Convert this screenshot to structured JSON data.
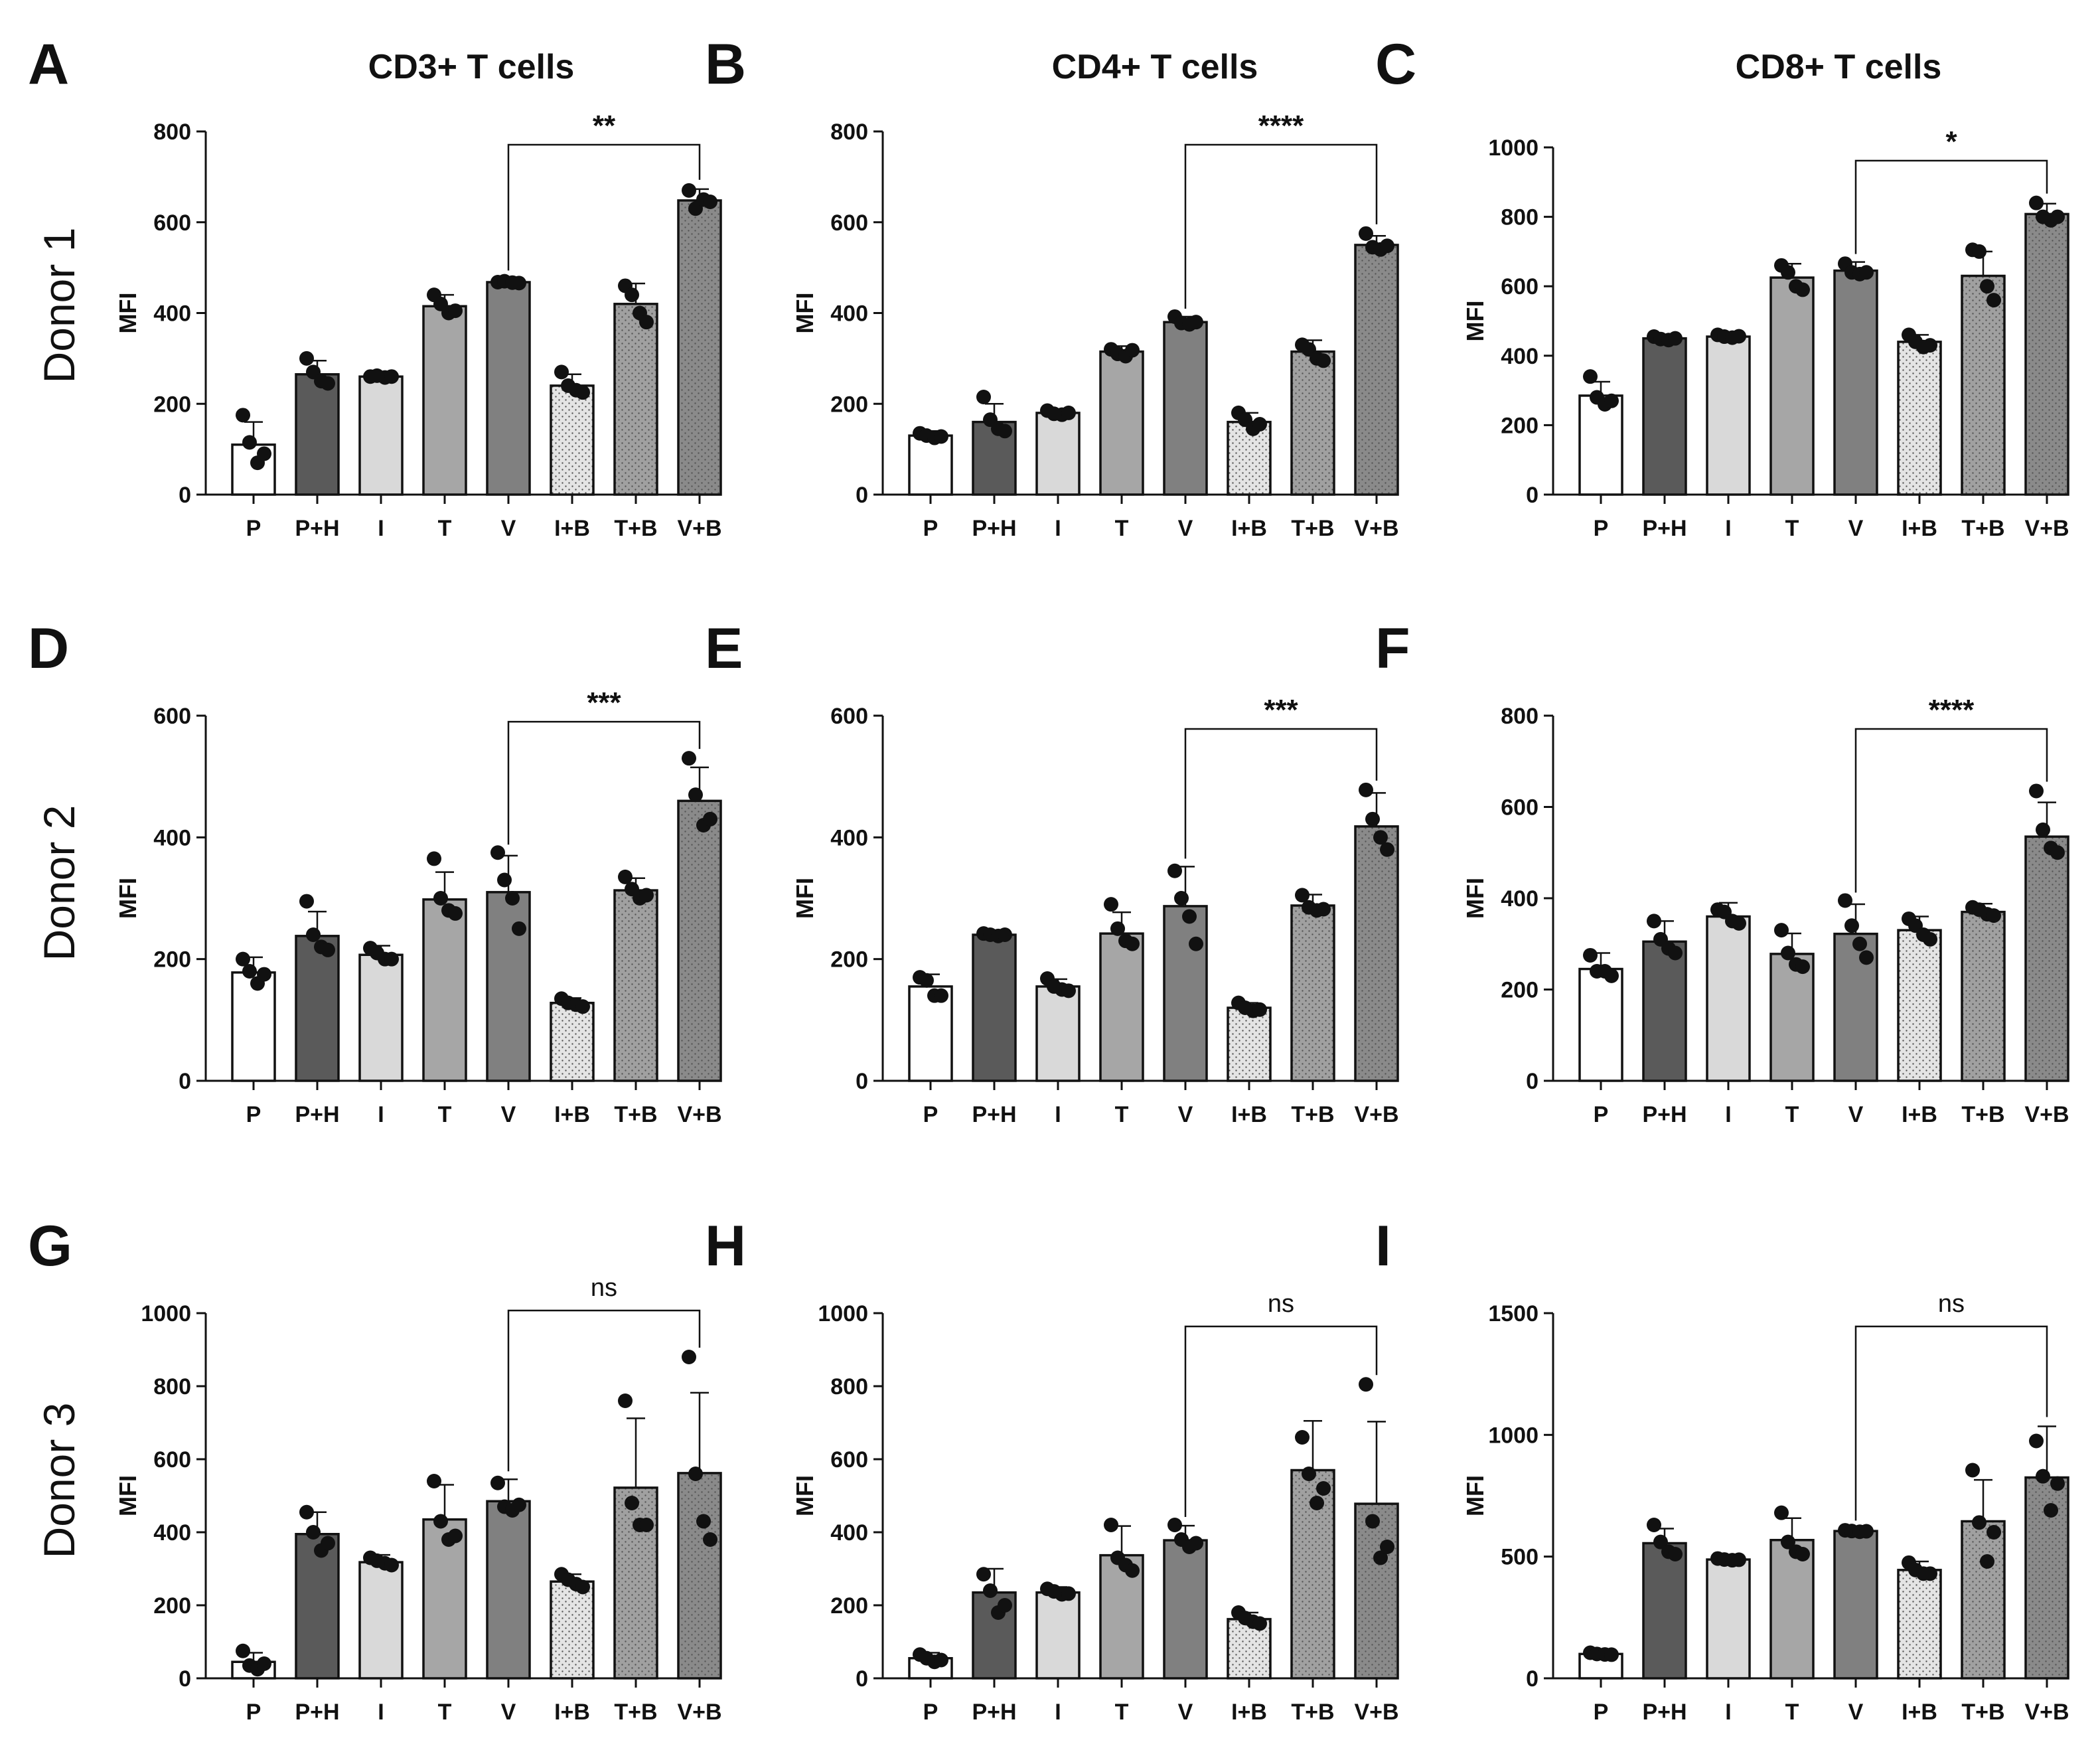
{
  "figure": {
    "column_titles": [
      "CD3+ T cells",
      "CD4+ T cells",
      "CD8+ T cells"
    ],
    "row_labels": [
      "Donor 1",
      "Donor 2",
      "Donor 3"
    ]
  },
  "colors": {
    "P": "#ffffff",
    "P+H": "#5a5a5a",
    "I": "#d9d9d9",
    "T": "#a6a6a6",
    "V": "#808080",
    "I+B": "#e4e4e4",
    "T+B": "#a0a0a0",
    "V+B": "#8a8a8a",
    "outline": "#111111",
    "dot": "#111111"
  },
  "chart_data": [
    {
      "panel": "A",
      "type": "bar",
      "title": "CD3+ T cells",
      "row_label": "Donor 1",
      "ylabel": "MFI",
      "ylim": [
        0,
        800
      ],
      "yticks": [
        0,
        200,
        400,
        600,
        800
      ],
      "categories": [
        "P",
        "P+H",
        "I",
        "T",
        "V",
        "I+B",
        "T+B",
        "V+B"
      ],
      "values": [
        110,
        265,
        260,
        415,
        468,
        240,
        420,
        648
      ],
      "errors": [
        50,
        30,
        8,
        25,
        8,
        25,
        45,
        25
      ],
      "points": [
        [
          175,
          115,
          70,
          90
        ],
        [
          300,
          270,
          250,
          245
        ],
        [
          260,
          262,
          258,
          260
        ],
        [
          440,
          420,
          400,
          405
        ],
        [
          468,
          470,
          467,
          466
        ],
        [
          270,
          240,
          230,
          225
        ],
        [
          460,
          440,
          400,
          380
        ],
        [
          670,
          630,
          650,
          645
        ]
      ],
      "comparison": {
        "from": "V",
        "to": "V+B",
        "label": "**"
      }
    },
    {
      "panel": "B",
      "type": "bar",
      "title": "CD4+ T cells",
      "row_label": "Donor 1",
      "ylabel": "MFI",
      "ylim": [
        0,
        800
      ],
      "yticks": [
        0,
        200,
        400,
        600,
        800
      ],
      "categories": [
        "P",
        "P+H",
        "I",
        "T",
        "V",
        "I+B",
        "T+B",
        "V+B"
      ],
      "values": [
        130,
        160,
        180,
        315,
        380,
        160,
        315,
        550
      ],
      "errors": [
        10,
        40,
        8,
        12,
        12,
        20,
        25,
        20
      ],
      "points": [
        [
          135,
          130,
          125,
          128
        ],
        [
          215,
          165,
          145,
          140
        ],
        [
          185,
          178,
          176,
          180
        ],
        [
          320,
          310,
          305,
          318
        ],
        [
          392,
          378,
          375,
          380
        ],
        [
          180,
          165,
          145,
          155
        ],
        [
          330,
          320,
          300,
          295
        ],
        [
          575,
          545,
          540,
          548
        ]
      ],
      "comparison": {
        "from": "V",
        "to": "V+B",
        "label": "****"
      }
    },
    {
      "panel": "C",
      "type": "bar",
      "title": "CD8+ T cells",
      "row_label": "Donor 1",
      "ylabel": "MFI",
      "ylim": [
        0,
        1000
      ],
      "yticks": [
        0,
        200,
        400,
        600,
        800,
        1000
      ],
      "categories": [
        "P",
        "P+H",
        "I",
        "T",
        "V",
        "I+B",
        "T+B",
        "V+B"
      ],
      "values": [
        285,
        450,
        455,
        625,
        645,
        440,
        630,
        808
      ],
      "errors": [
        40,
        10,
        8,
        40,
        25,
        20,
        70,
        30
      ],
      "points": [
        [
          340,
          280,
          260,
          270
        ],
        [
          455,
          448,
          445,
          450
        ],
        [
          460,
          455,
          452,
          456
        ],
        [
          660,
          640,
          600,
          590
        ],
        [
          665,
          640,
          635,
          640
        ],
        [
          460,
          440,
          425,
          430
        ],
        [
          705,
          700,
          600,
          560
        ],
        [
          840,
          800,
          790,
          800
        ]
      ],
      "comparison": {
        "from": "V",
        "to": "V+B",
        "label": "*"
      }
    },
    {
      "panel": "D",
      "type": "bar",
      "title": "",
      "row_label": "Donor 2",
      "ylabel": "MFI",
      "ylim": [
        0,
        600
      ],
      "yticks": [
        0,
        200,
        400,
        600
      ],
      "categories": [
        "P",
        "P+H",
        "I",
        "T",
        "V",
        "I+B",
        "T+B",
        "V+B"
      ],
      "values": [
        178,
        238,
        207,
        298,
        310,
        128,
        313,
        460
      ],
      "errors": [
        25,
        40,
        15,
        45,
        60,
        8,
        20,
        55
      ],
      "points": [
        [
          200,
          180,
          160,
          175
        ],
        [
          295,
          240,
          220,
          215
        ],
        [
          218,
          210,
          200,
          200
        ],
        [
          365,
          300,
          280,
          275
        ],
        [
          375,
          330,
          300,
          250
        ],
        [
          135,
          128,
          125,
          122
        ],
        [
          335,
          315,
          300,
          305
        ],
        [
          530,
          470,
          420,
          430
        ]
      ],
      "comparison": {
        "from": "V",
        "to": "V+B",
        "label": "***"
      }
    },
    {
      "panel": "E",
      "type": "bar",
      "title": "",
      "row_label": "Donor 2",
      "ylabel": "MFI",
      "ylim": [
        0,
        600
      ],
      "yticks": [
        0,
        200,
        400,
        600
      ],
      "categories": [
        "P",
        "P+H",
        "I",
        "T",
        "V",
        "I+B",
        "T+B",
        "V+B"
      ],
      "values": [
        155,
        240,
        155,
        242,
        287,
        120,
        288,
        418
      ],
      "errors": [
        20,
        5,
        12,
        35,
        65,
        8,
        18,
        55
      ],
      "points": [
        [
          170,
          165,
          140,
          140
        ],
        [
          242,
          240,
          238,
          240
        ],
        [
          168,
          155,
          150,
          148
        ],
        [
          290,
          250,
          230,
          225
        ],
        [
          345,
          300,
          270,
          225
        ],
        [
          128,
          120,
          115,
          117
        ],
        [
          305,
          285,
          280,
          282
        ],
        [
          478,
          430,
          400,
          380
        ]
      ],
      "comparison": {
        "from": "V",
        "to": "V+B",
        "label": "***"
      }
    },
    {
      "panel": "F",
      "type": "bar",
      "title": "",
      "row_label": "Donor 2",
      "ylabel": "MFI",
      "ylim": [
        0,
        800
      ],
      "yticks": [
        0,
        200,
        400,
        600,
        800
      ],
      "categories": [
        "P",
        "P+H",
        "I",
        "T",
        "V",
        "I+B",
        "T+B",
        "V+B"
      ],
      "values": [
        245,
        305,
        360,
        278,
        322,
        330,
        370,
        535
      ],
      "errors": [
        35,
        45,
        30,
        45,
        65,
        30,
        18,
        75
      ],
      "points": [
        [
          275,
          240,
          240,
          230
        ],
        [
          350,
          310,
          290,
          280
        ],
        [
          375,
          370,
          350,
          345
        ],
        [
          330,
          280,
          255,
          250
        ],
        [
          395,
          340,
          300,
          270
        ],
        [
          355,
          340,
          320,
          310
        ],
        [
          380,
          375,
          365,
          362
        ],
        [
          635,
          550,
          510,
          500
        ]
      ],
      "comparison": {
        "from": "V",
        "to": "V+B",
        "label": "****"
      }
    },
    {
      "panel": "G",
      "type": "bar",
      "title": "",
      "row_label": "Donor 3",
      "ylabel": "MFI",
      "ylim": [
        0,
        1000
      ],
      "yticks": [
        0,
        200,
        400,
        600,
        800,
        1000
      ],
      "categories": [
        "P",
        "P+H",
        "I",
        "T",
        "V",
        "I+B",
        "T+B",
        "V+B"
      ],
      "values": [
        45,
        395,
        318,
        435,
        485,
        265,
        522,
        562
      ],
      "errors": [
        25,
        60,
        20,
        95,
        60,
        20,
        190,
        220
      ],
      "points": [
        [
          75,
          35,
          25,
          40
        ],
        [
          455,
          400,
          350,
          370
        ],
        [
          330,
          322,
          315,
          310
        ],
        [
          540,
          430,
          380,
          390
        ],
        [
          535,
          470,
          460,
          475
        ],
        [
          285,
          270,
          258,
          250
        ],
        [
          760,
          480,
          420,
          420
        ],
        [
          880,
          560,
          430,
          380
        ]
      ],
      "comparison": {
        "from": "V",
        "to": "V+B",
        "label": "ns"
      }
    },
    {
      "panel": "H",
      "type": "bar",
      "title": "",
      "row_label": "Donor 3",
      "ylabel": "MFI",
      "ylim": [
        0,
        1000
      ],
      "yticks": [
        0,
        200,
        400,
        600,
        800,
        1000
      ],
      "categories": [
        "P",
        "P+H",
        "I",
        "T",
        "V",
        "I+B",
        "T+B",
        "V+B"
      ],
      "values": [
        55,
        235,
        235,
        337,
        378,
        162,
        570,
        478
      ],
      "errors": [
        15,
        65,
        15,
        80,
        40,
        18,
        135,
        225
      ],
      "points": [
        [
          65,
          55,
          45,
          50
        ],
        [
          285,
          240,
          180,
          200
        ],
        [
          245,
          238,
          230,
          232
        ],
        [
          420,
          330,
          310,
          295
        ],
        [
          420,
          380,
          360,
          370
        ],
        [
          180,
          165,
          155,
          150
        ],
        [
          660,
          560,
          480,
          520
        ],
        [
          805,
          430,
          330,
          360
        ]
      ],
      "comparison": {
        "from": "V",
        "to": "V+B",
        "label": "ns"
      }
    },
    {
      "panel": "I",
      "type": "bar",
      "title": "",
      "row_label": "Donor 3",
      "ylabel": "MFI",
      "ylim": [
        0,
        1500
      ],
      "yticks": [
        0,
        500,
        1000,
        1500
      ],
      "categories": [
        "P",
        "P+H",
        "I",
        "T",
        "V",
        "I+B",
        "T+B",
        "V+B"
      ],
      "values": [
        100,
        555,
        488,
        568,
        605,
        445,
        645,
        825
      ],
      "errors": [
        8,
        60,
        15,
        90,
        10,
        35,
        170,
        210
      ],
      "points": [
        [
          105,
          100,
          98,
          97
        ],
        [
          630,
          560,
          520,
          510
        ],
        [
          492,
          488,
          485,
          487
        ],
        [
          680,
          560,
          520,
          510
        ],
        [
          608,
          605,
          602,
          604
        ],
        [
          475,
          445,
          430,
          430
        ],
        [
          855,
          640,
          480,
          600
        ],
        [
          975,
          830,
          690,
          800
        ]
      ],
      "comparison": {
        "from": "V",
        "to": "V+B",
        "label": "ns"
      }
    }
  ]
}
